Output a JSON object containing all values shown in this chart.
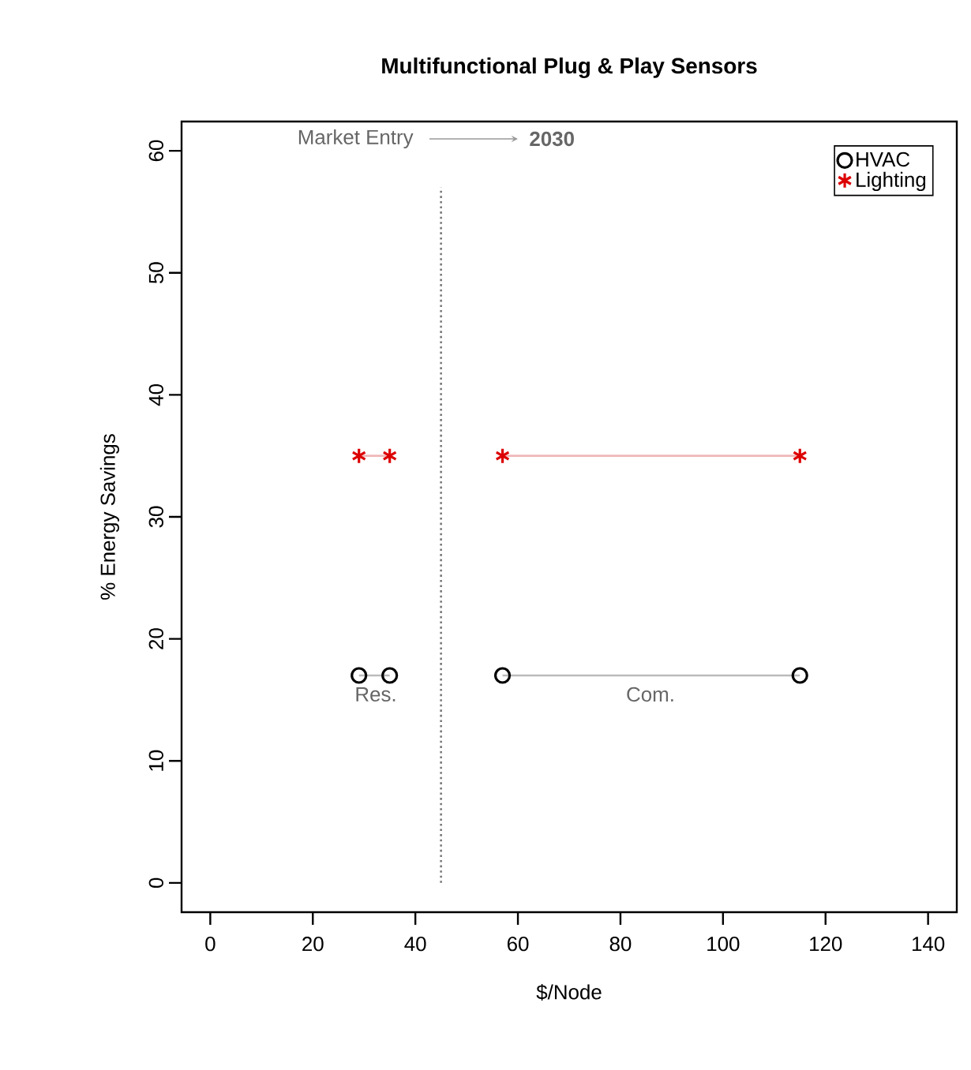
{
  "chart_data": {
    "type": "scatter",
    "title": "Multifunctional Plug & Play Sensors",
    "xlabel": "$/Node",
    "ylabel": "% Energy Savings",
    "series": [
      {
        "type": "line",
        "color": "#bbbbbb",
        "x": [
          35,
          29
        ],
        "values": [
          17,
          17
        ]
      },
      {
        "type": "line",
        "color": "#bbbbbb",
        "x": [
          115,
          57
        ],
        "values": [
          17,
          17
        ]
      },
      {
        "type": "line",
        "color": "#f0b8b8",
        "x": [
          35,
          29
        ],
        "values": [
          35,
          35
        ]
      },
      {
        "type": "line",
        "color": "#f0b8b8",
        "x": [
          115,
          57
        ],
        "values": [
          35,
          35
        ]
      },
      {
        "name": "HVAC",
        "color": "#000000",
        "marker": "circle",
        "x": [
          35,
          115
        ],
        "values": [
          17,
          17
        ]
      },
      {
        "name": "Lighting",
        "color": "#dd0000",
        "marker": "cross",
        "x": [
          35,
          115
        ],
        "values": [
          35,
          35
        ]
      },
      {
        "color": "#000000",
        "marker": "circle",
        "x": [
          29,
          57
        ],
        "values": [
          17,
          17
        ]
      },
      {
        "color": "#dd0000",
        "marker": "cross",
        "x": [
          29,
          57
        ],
        "values": [
          35,
          35
        ]
      }
    ],
    "xlim": [
      -5.6,
      145.6
    ],
    "ylim": [
      -2.4,
      62.4
    ],
    "xticks": [
      0,
      20,
      40,
      60,
      80,
      100,
      120,
      140
    ],
    "yticks": [
      0,
      10,
      20,
      30,
      40,
      50,
      60
    ],
    "ref_lines": [
      {
        "axis": "x",
        "value": 45,
        "color": "#777777",
        "line_style": "dotted"
      }
    ],
    "annotations": [
      "Market Entry",
      "**2030**",
      "Res.",
      "Com."
    ],
    "legend": "top right",
    "grid": false
  }
}
